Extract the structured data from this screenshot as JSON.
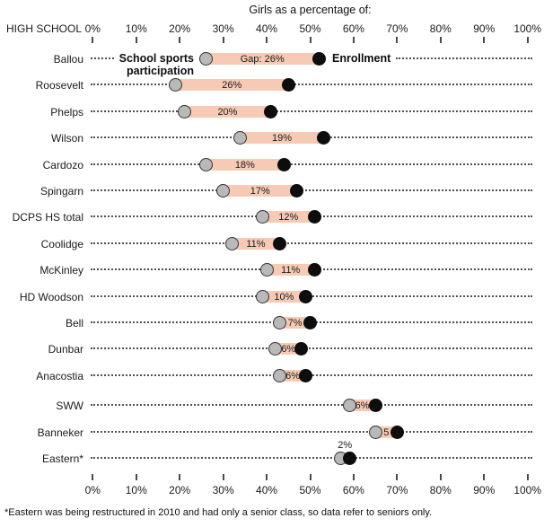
{
  "title": "Girls as a percentage of:",
  "header": {
    "label": "HIGH SCHOOL"
  },
  "legend": {
    "sports_line1": "School sports",
    "sports_line2": "participation",
    "enrollment": "Enrollment"
  },
  "chart_data": {
    "type": "scatter",
    "subtype": "dumbbell-dot-plot",
    "title": "Girls as a percentage of:",
    "categories": [
      "Ballou",
      "Roosevelt",
      "Phelps",
      "Wilson",
      "Cardozo",
      "Spingarn",
      "DCPS HS total",
      "Coolidge",
      "McKinley",
      "HD Woodson",
      "Bell",
      "Dunbar",
      "Anacostia",
      "SWW",
      "Banneker",
      "Eastern*"
    ],
    "series": [
      {
        "name": "School sports participation",
        "values": [
          26,
          19,
          21,
          34,
          26,
          30,
          39,
          32,
          40,
          39,
          43,
          42,
          43,
          59,
          65,
          57
        ]
      },
      {
        "name": "Enrollment",
        "values": [
          52,
          45,
          41,
          53,
          44,
          47,
          51,
          43,
          51,
          49,
          50,
          48,
          49,
          65,
          70,
          59
        ]
      }
    ],
    "gap_labels": [
      "Gap: 26%",
      "26%",
      "20%",
      "19%",
      "18%",
      "17%",
      "12%",
      "11%",
      "11%",
      "10%",
      "7%",
      "6%",
      "6%",
      "6%",
      "5",
      "2%"
    ],
    "gap_label_positions": [
      "inside",
      "inside",
      "inside",
      "inside",
      "inside",
      "inside",
      "inside",
      "inside",
      "inside",
      "inside",
      "inside",
      "inside",
      "inside",
      "inside",
      "inside",
      "above"
    ],
    "xlim": [
      0,
      100
    ],
    "x_tick_labels": [
      "0%",
      "10%",
      "20%",
      "30%",
      "40%",
      "50%",
      "60%",
      "70%",
      "80%",
      "90%",
      "100%"
    ],
    "grid": false,
    "legend_position": "inline-first-row"
  },
  "footnote": "*Eastern was being restructured in 2010 and had only a senior class, so data refer to seniors only.",
  "colors": {
    "band": "#f6cab5",
    "sports_dot": "#b9b9b9",
    "enrollment_dot": "#0d0d0d",
    "dot_stroke": "#333333",
    "leader_dots": "#4f4f4f",
    "text": "#1a1a1a"
  }
}
